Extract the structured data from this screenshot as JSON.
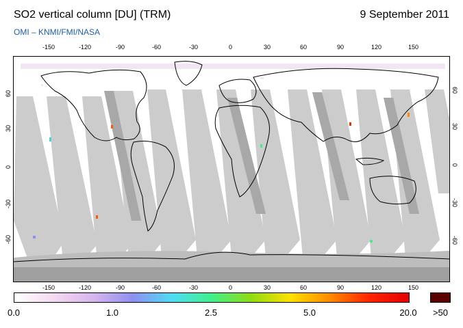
{
  "header": {
    "title": "SO2 vertical column [DU] (TRM)",
    "date": "9 September 2011",
    "credit": "OMI  –  KNMI/FMI/NASA"
  },
  "map": {
    "lon_ticks": [
      "-150",
      "-120",
      "-90",
      "-60",
      "-30",
      "0",
      "30",
      "60",
      "90",
      "120",
      "150"
    ],
    "lat_ticks": [
      "60",
      "30",
      "0",
      "-30",
      "-60"
    ],
    "lon_range": [
      -180,
      180
    ],
    "lat_range": [
      -90,
      90
    ],
    "swath_color": "#cccccc",
    "overlap_color": "#a8a8a8",
    "nodata_color": "#a0a0a0"
  },
  "colorbar": {
    "labels": [
      "0.0",
      "1.0",
      "2.5",
      "5.0",
      "20.0",
      ">50"
    ],
    "colors": [
      "#ffffff",
      "#f5d8f2",
      "#d9b5ee",
      "#8e8ff0",
      "#4fdcf5",
      "#3ff08a",
      "#8fdc14",
      "#ffe000",
      "#ff8a00",
      "#ff2400",
      "#e60000"
    ],
    "max_color": "#5a0000"
  }
}
